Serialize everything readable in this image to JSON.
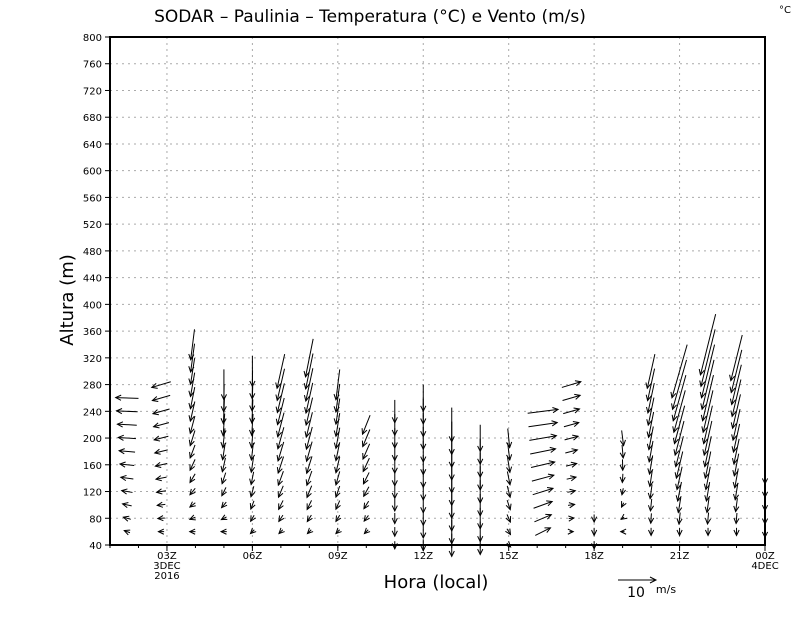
{
  "chart_data": {
    "type": "vector",
    "title": "SODAR  –  Paulinia  –  Temperatura (°C) e Vento (m/s)",
    "corner_label": "°C",
    "xlabel": "Hora (local)",
    "ylabel": "Altura (m)",
    "ylim": [
      40,
      800
    ],
    "yticks": [
      40,
      80,
      120,
      160,
      200,
      240,
      280,
      320,
      360,
      400,
      440,
      480,
      520,
      560,
      600,
      640,
      680,
      720,
      760,
      800
    ],
    "xlim_hours": [
      1,
      24
    ],
    "xticks": [
      {
        "hour": 3,
        "label": "03Z",
        "sub1": "3DEC",
        "sub2": "2016"
      },
      {
        "hour": 6,
        "label": "06Z"
      },
      {
        "hour": 9,
        "label": "09Z"
      },
      {
        "hour": 12,
        "label": "12Z"
      },
      {
        "hour": 15,
        "label": "15Z"
      },
      {
        "hour": 18,
        "label": "18Z"
      },
      {
        "hour": 21,
        "label": "21Z"
      },
      {
        "hour": 24,
        "label": "00Z",
        "sub1": "4DEC"
      }
    ],
    "grid": true,
    "reference_vector": {
      "value": 10,
      "label": "10",
      "units": "m/s"
    },
    "height_step_m": 20,
    "columns": [
      {
        "hour": 1.6,
        "bottom": 60,
        "top": 260,
        "u0": -1.5,
        "v0": 0.6,
        "u1": -6,
        "v1": 0.2
      },
      {
        "hour": 2.8,
        "bottom": 60,
        "top": 270,
        "u0": -1.5,
        "v0": 0,
        "u1": -5,
        "v1": -1.5
      },
      {
        "hour": 3.9,
        "bottom": 60,
        "top": 330,
        "u0": -1.5,
        "v0": 0,
        "u1": -1,
        "v1": -8
      },
      {
        "hour": 5,
        "bottom": 60,
        "top": 280,
        "u0": -1.5,
        "v0": 0,
        "u1": 0,
        "v1": -8
      },
      {
        "hour": 6,
        "bottom": 60,
        "top": 290,
        "u0": -1,
        "v0": -1,
        "u1": 0,
        "v1": -8
      },
      {
        "hour": 7,
        "bottom": 60,
        "top": 300,
        "u0": -1,
        "v0": -1,
        "u1": -2,
        "v1": -9
      },
      {
        "hour": 8,
        "bottom": 60,
        "top": 320,
        "u0": -1,
        "v0": -1,
        "u1": -2,
        "v1": -10
      },
      {
        "hour": 9,
        "bottom": 60,
        "top": 280,
        "u0": -1,
        "v0": -1,
        "u1": -1,
        "v1": -8
      },
      {
        "hour": 10,
        "bottom": 60,
        "top": 210,
        "u0": -1,
        "v0": -1,
        "u1": -2,
        "v1": -5
      },
      {
        "hour": 11,
        "bottom": 40,
        "top": 240,
        "u0": 0,
        "v0": -2,
        "u1": 0,
        "v1": -6
      },
      {
        "hour": 12,
        "bottom": 40,
        "top": 260,
        "u0": 0,
        "v0": -3,
        "u1": 0,
        "v1": -7
      },
      {
        "hour": 13,
        "bottom": 40,
        "top": 220,
        "u0": 0,
        "v0": -6,
        "u1": 0,
        "v1": -9
      },
      {
        "hour": 14,
        "bottom": 40,
        "top": 200,
        "u0": 0,
        "v0": -5,
        "u1": 0,
        "v1": -7
      },
      {
        "hour": 15,
        "bottom": 40,
        "top": 200,
        "u0": 1,
        "v0": -1,
        "u1": 0.5,
        "v1": -5
      },
      {
        "hour": 16.2,
        "bottom": 60,
        "top": 240,
        "u0": 4,
        "v0": 2,
        "u1": 8,
        "v1": 1
      },
      {
        "hour": 17.2,
        "bottom": 60,
        "top": 270,
        "u0": 1,
        "v0": 0,
        "u1": 5,
        "v1": 1.5
      },
      {
        "hour": 18,
        "bottom": 40,
        "top": 80,
        "u0": 0,
        "v0": -2,
        "u1": 0,
        "v1": -2
      },
      {
        "hour": 19,
        "bottom": 60,
        "top": 200,
        "u0": -1,
        "v0": 0,
        "u1": 0.5,
        "v1": -4
      },
      {
        "hour": 20,
        "bottom": 60,
        "top": 300,
        "u0": 0,
        "v0": -2,
        "u1": -2,
        "v1": -9
      },
      {
        "hour": 21,
        "bottom": 60,
        "top": 300,
        "u0": 0,
        "v0": -2,
        "u1": -4,
        "v1": -14
      },
      {
        "hour": 22,
        "bottom": 60,
        "top": 340,
        "u0": 0,
        "v0": -2,
        "u1": -4,
        "v1": -16
      },
      {
        "hour": 23,
        "bottom": 60,
        "top": 320,
        "u0": 0,
        "v0": -2,
        "u1": -3,
        "v1": -12
      },
      {
        "hour": 24,
        "bottom": 60,
        "top": 140,
        "u0": 0,
        "v0": -3,
        "u1": 0,
        "v1": -3
      }
    ]
  }
}
